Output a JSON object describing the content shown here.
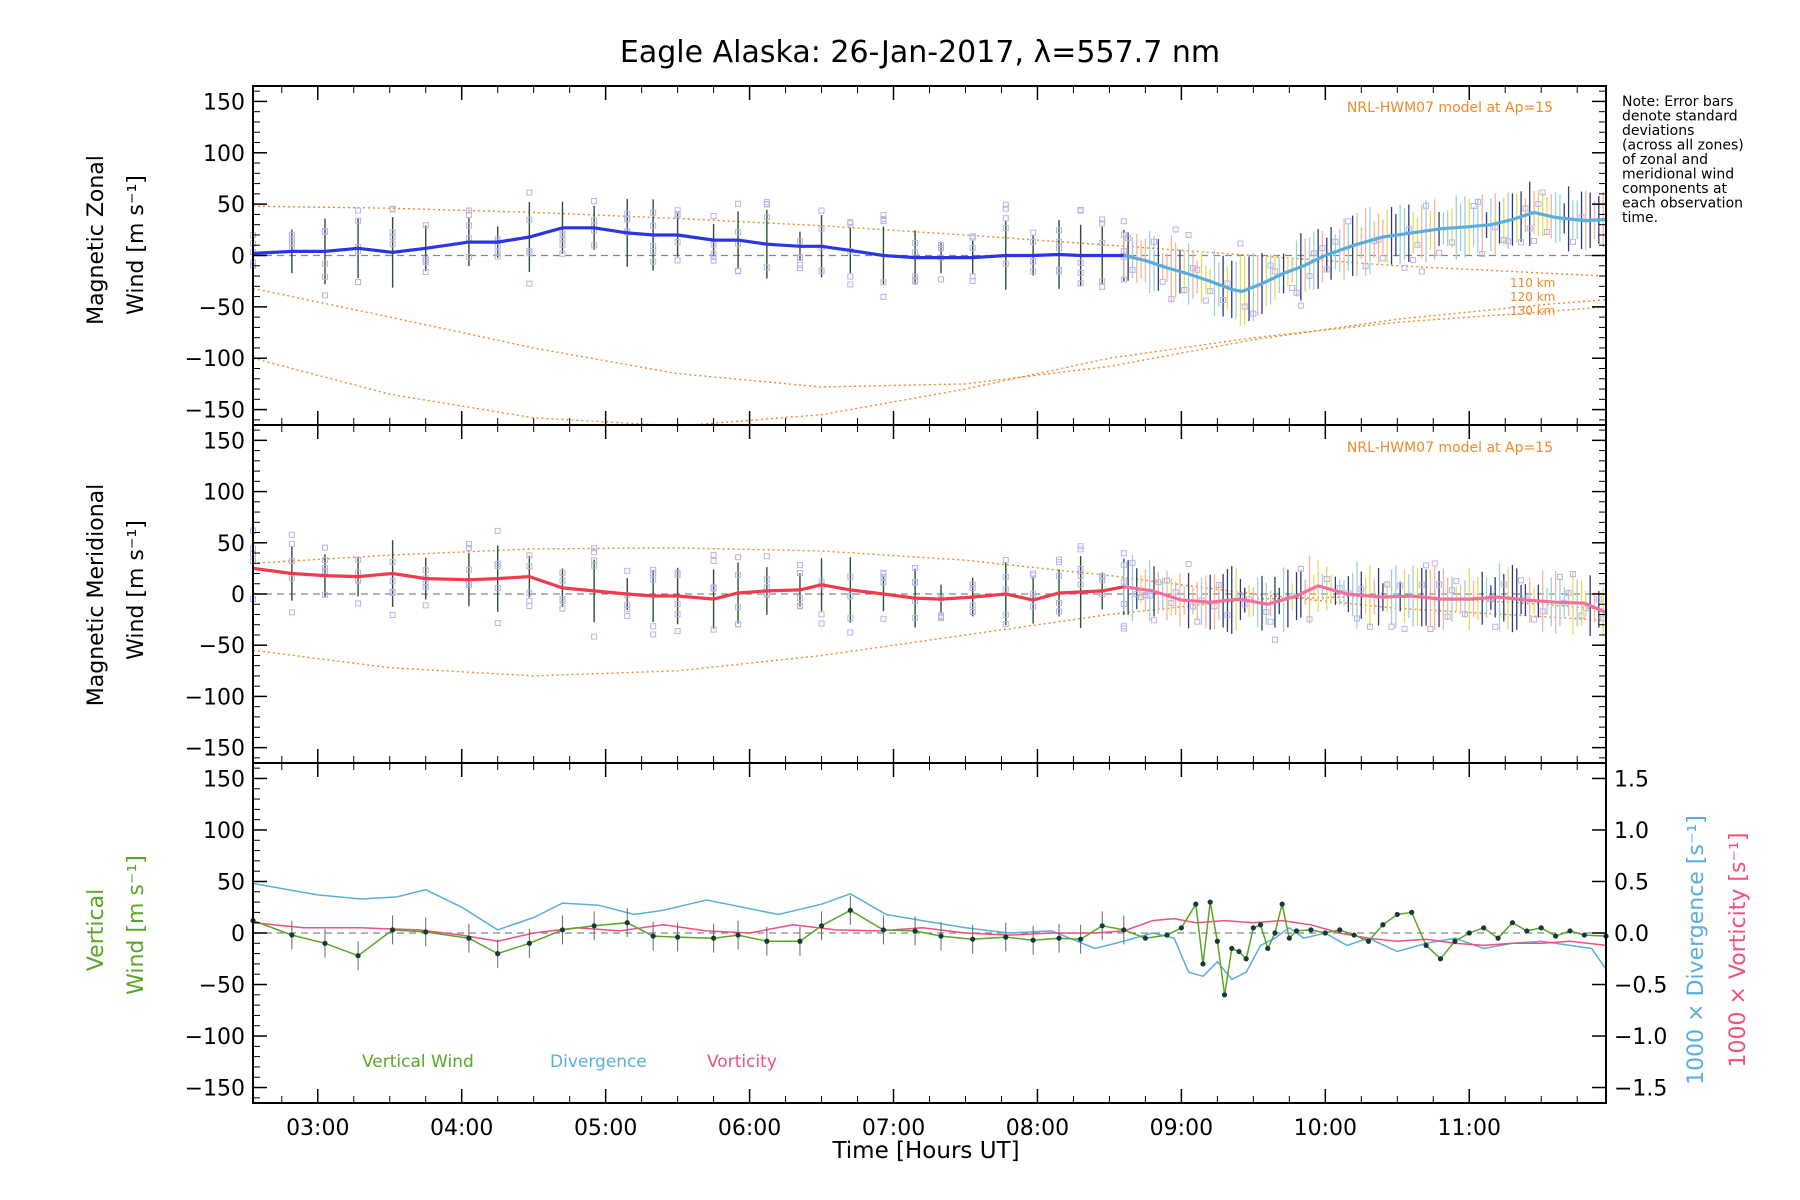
{
  "title": "Eagle Alaska: 26-Jan-2017, λ=557.7 nm",
  "xlabel": "Time [Hours UT]",
  "note_lines": [
    "Note: Error bars",
    "denote standard",
    "deviations",
    "(across all zones)",
    "of zonal and",
    "meridional wind",
    "components at",
    "each observation",
    "time."
  ],
  "model_label": "NRL-HWM07 model at Ap=15",
  "model_altitudes": [
    "110 km",
    "120 km",
    "130 km"
  ],
  "colors": {
    "zonal": "#2b35e6",
    "zonal_late": "#5aaedd",
    "meridional": "#f03a4e",
    "meridional_late": "#f56ea0",
    "model": "#ef8a28",
    "vertical": "#5aa626",
    "divergence": "#5aaedd",
    "vorticity": "#f0507e",
    "samples": "#b7b3e8"
  },
  "chart_data": [
    {
      "type": "line",
      "panel": "zonal",
      "ylabel_lines": [
        "Magnetic Zonal",
        "Wind [m s⁻¹]"
      ],
      "xlim": [
        2.55,
        11.95
      ],
      "ylim": [
        -165,
        165
      ],
      "x_ticks": [
        "03:00",
        "04:00",
        "05:00",
        "06:00",
        "07:00",
        "08:00",
        "09:00",
        "10:00",
        "11:00"
      ],
      "y_ticks": [
        "150",
        "100",
        "50",
        "0",
        "−50",
        "−100",
        "−150"
      ],
      "series": [
        {
          "x": [
            2.55,
            2.82,
            3.05,
            3.28,
            3.52,
            3.75,
            4.05,
            4.25,
            4.47,
            4.7,
            4.92,
            5.15,
            5.33,
            5.5,
            5.75,
            5.92,
            6.12,
            6.35,
            6.5,
            6.7,
            6.93,
            7.15,
            7.33,
            7.55,
            7.78,
            7.97,
            8.15,
            8.3,
            8.45,
            8.6
          ],
          "y": [
            2,
            4,
            4,
            7,
            3,
            7,
            13,
            13,
            18,
            27,
            27,
            22,
            20,
            20,
            15,
            15,
            11,
            9,
            9,
            5,
            0,
            -2,
            -2,
            -2,
            0,
            0,
            1,
            0,
            0,
            0
          ]
        },
        {
          "x": [
            8.6,
            8.75,
            8.9,
            9.05,
            9.2,
            9.35,
            9.42,
            9.55,
            9.7,
            9.85,
            10.0,
            10.2,
            10.4,
            10.6,
            10.8,
            11.0,
            11.15,
            11.3,
            11.45,
            11.6,
            11.8,
            11.95
          ],
          "y": [
            0,
            -5,
            -12,
            -18,
            -25,
            -33,
            -35,
            -28,
            -18,
            -10,
            0,
            10,
            18,
            22,
            26,
            28,
            30,
            35,
            42,
            37,
            34,
            35
          ]
        }
      ],
      "model_curves": [
        {
          "x": [
            2.55,
            3.5,
            4.5,
            5.5,
            6.5,
            7.5,
            8.5,
            9.5,
            10.5,
            11.5,
            11.95
          ],
          "y": [
            48,
            46,
            42,
            36,
            29,
            20,
            10,
            0,
            -10,
            -17,
            -20
          ]
        },
        {
          "x": [
            2.55,
            3.5,
            4.5,
            5.5,
            6.5,
            7.5,
            8.5,
            9.5,
            10.5,
            11.5,
            11.95
          ],
          "y": [
            -32,
            -60,
            -90,
            -115,
            -128,
            -125,
            -108,
            -82,
            -62,
            -48,
            -43
          ]
        },
        {
          "x": [
            2.55,
            3.5,
            4.5,
            5.5,
            6.5,
            7.5,
            8.5,
            9.5,
            10.5,
            11.5,
            11.95
          ],
          "y": [
            -100,
            -135,
            -158,
            -166,
            -155,
            -130,
            -100,
            -80,
            -65,
            -55,
            -50
          ]
        }
      ]
    },
    {
      "type": "line",
      "panel": "meridional",
      "ylabel_lines": [
        "Magnetic Meridional",
        "Wind [m s⁻¹]"
      ],
      "xlim": [
        2.55,
        11.95
      ],
      "ylim": [
        -165,
        165
      ],
      "y_ticks": [
        "150",
        "100",
        "50",
        "0",
        "−50",
        "−100",
        "−150"
      ],
      "series": [
        {
          "x": [
            2.55,
            2.82,
            3.05,
            3.28,
            3.52,
            3.75,
            4.05,
            4.25,
            4.47,
            4.7,
            4.92,
            5.15,
            5.33,
            5.5,
            5.75,
            5.92,
            6.12,
            6.35,
            6.5,
            6.7,
            6.93,
            7.15,
            7.33,
            7.55,
            7.78,
            7.97,
            8.15,
            8.3,
            8.45,
            8.6
          ],
          "y": [
            25,
            20,
            18,
            17,
            20,
            15,
            14,
            15,
            17,
            6,
            3,
            0,
            -2,
            -2,
            -5,
            1,
            3,
            4,
            9,
            4,
            0,
            -4,
            -5,
            -3,
            0,
            -6,
            1,
            2,
            3,
            7
          ]
        },
        {
          "x": [
            8.6,
            8.8,
            9.0,
            9.2,
            9.4,
            9.6,
            9.8,
            9.95,
            10.15,
            10.4,
            10.6,
            10.8,
            11.0,
            11.2,
            11.4,
            11.6,
            11.8,
            11.95
          ],
          "y": [
            7,
            3,
            -6,
            -8,
            -5,
            -10,
            -2,
            8,
            0,
            -3,
            -2,
            -5,
            -5,
            -3,
            -6,
            -8,
            -9,
            -18
          ]
        }
      ],
      "model_curves": [
        {
          "x": [
            2.55,
            3.5,
            4.5,
            5.5,
            6.5,
            7.5,
            8.5,
            9.5,
            10.5,
            11.5,
            11.95
          ],
          "y": [
            30,
            38,
            44,
            45,
            42,
            33,
            18,
            0,
            -14,
            -22,
            -26
          ]
        },
        {
          "x": [
            2.55,
            3.5,
            4.5,
            5.5,
            6.5,
            7.5,
            8.5,
            9.5,
            10.5,
            11.5,
            11.95
          ],
          "y": [
            -55,
            -72,
            -80,
            -75,
            -60,
            -40,
            -20,
            -5,
            -2,
            -10,
            -15
          ]
        }
      ]
    },
    {
      "type": "line",
      "panel": "vertical",
      "ylabel_lines": [
        "Vertical",
        "Wind [m s⁻¹]"
      ],
      "right_label_divergence": "1000 × Divergence [s⁻¹]",
      "right_label_vorticity": "1000 × Vorticity [s⁻¹]",
      "xlim": [
        2.55,
        11.95
      ],
      "ylim": [
        -165,
        165
      ],
      "y2lim": [
        -1.65,
        1.65
      ],
      "y_ticks": [
        "150",
        "100",
        "50",
        "0",
        "−50",
        "−100",
        "−150"
      ],
      "y2_ticks": [
        "1.5",
        "1.0",
        "0.5",
        "0.0",
        "−0.5",
        "−1.0",
        "−1.5"
      ],
      "legend": [
        "Vertical Wind",
        "Divergence",
        "Vorticity"
      ],
      "series": [
        {
          "name": "Vertical Wind",
          "x": [
            2.55,
            2.82,
            3.05,
            3.28,
            3.52,
            3.75,
            4.05,
            4.25,
            4.47,
            4.7,
            4.92,
            5.15,
            5.33,
            5.5,
            5.75,
            5.92,
            6.12,
            6.35,
            6.5,
            6.7,
            6.93,
            7.15,
            7.33,
            7.55,
            7.78,
            7.97,
            8.15,
            8.3,
            8.45,
            8.6,
            8.75,
            8.9,
            9.0,
            9.1,
            9.15,
            9.2,
            9.25,
            9.3,
            9.35,
            9.4,
            9.45,
            9.5,
            9.55,
            9.6,
            9.65,
            9.7,
            9.75,
            9.8,
            9.9,
            10.0,
            10.1,
            10.2,
            10.3,
            10.4,
            10.5,
            10.6,
            10.7,
            10.8,
            10.9,
            11.0,
            11.1,
            11.2,
            11.3,
            11.4,
            11.5,
            11.6,
            11.7,
            11.8,
            11.95
          ],
          "y": [
            12,
            -2,
            -10,
            -22,
            3,
            1,
            -5,
            -20,
            -10,
            3,
            7,
            10,
            -3,
            -4,
            -5,
            -2,
            -8,
            -8,
            7,
            22,
            3,
            2,
            -3,
            -6,
            -4,
            -7,
            -5,
            -6,
            7,
            3,
            -5,
            -2,
            5,
            28,
            -30,
            30,
            -8,
            -60,
            -15,
            -18,
            -25,
            5,
            8,
            -15,
            0,
            28,
            -5,
            2,
            3,
            0,
            3,
            -2,
            -8,
            8,
            18,
            20,
            -12,
            -25,
            -8,
            0,
            5,
            -5,
            10,
            2,
            5,
            -3,
            2,
            -2,
            -3
          ]
        },
        {
          "name": "Divergence",
          "x": [
            2.55,
            3.0,
            3.3,
            3.55,
            3.75,
            4.0,
            4.25,
            4.5,
            4.7,
            4.95,
            5.2,
            5.4,
            5.7,
            5.95,
            6.2,
            6.5,
            6.7,
            6.95,
            7.2,
            7.5,
            7.8,
            8.1,
            8.4,
            8.6,
            8.8,
            8.95,
            9.05,
            9.15,
            9.25,
            9.35,
            9.45,
            9.55,
            9.65,
            9.75,
            9.85,
            10.0,
            10.15,
            10.3,
            10.5,
            10.7,
            10.9,
            11.1,
            11.3,
            11.5,
            11.7,
            11.85,
            11.95
          ],
          "y": [
            0.48,
            0.37,
            0.33,
            0.35,
            0.42,
            0.25,
            0.03,
            0.15,
            0.29,
            0.27,
            0.18,
            0.22,
            0.32,
            0.25,
            0.18,
            0.28,
            0.38,
            0.18,
            0.12,
            0.05,
            0.0,
            0.02,
            -0.15,
            -0.08,
            0.0,
            -0.05,
            -0.38,
            -0.42,
            -0.28,
            -0.45,
            -0.38,
            -0.12,
            -0.05,
            0.05,
            -0.05,
            0.0,
            -0.12,
            -0.05,
            -0.18,
            -0.1,
            -0.05,
            -0.15,
            -0.1,
            -0.08,
            -0.12,
            -0.15,
            -0.35
          ]
        },
        {
          "name": "Vorticity",
          "x": [
            2.55,
            2.9,
            3.3,
            3.7,
            4.0,
            4.25,
            4.5,
            4.8,
            5.1,
            5.4,
            5.7,
            6.0,
            6.3,
            6.6,
            6.9,
            7.2,
            7.5,
            7.8,
            8.1,
            8.4,
            8.6,
            8.8,
            8.95,
            9.1,
            9.3,
            9.5,
            9.7,
            9.9,
            10.1,
            10.3,
            10.5,
            10.7,
            10.9,
            11.1,
            11.3,
            11.5,
            11.7,
            11.95
          ],
          "y": [
            0.1,
            0.05,
            0.05,
            0.03,
            -0.02,
            -0.08,
            0.0,
            0.05,
            0.02,
            0.08,
            0.02,
            0.0,
            0.08,
            0.03,
            0.02,
            0.05,
            0.0,
            -0.02,
            0.0,
            0.0,
            0.02,
            0.12,
            0.14,
            0.1,
            0.12,
            0.1,
            0.12,
            0.08,
            0.0,
            -0.05,
            -0.08,
            -0.06,
            -0.1,
            -0.12,
            -0.1,
            -0.1,
            -0.08,
            -0.12
          ]
        }
      ]
    }
  ]
}
